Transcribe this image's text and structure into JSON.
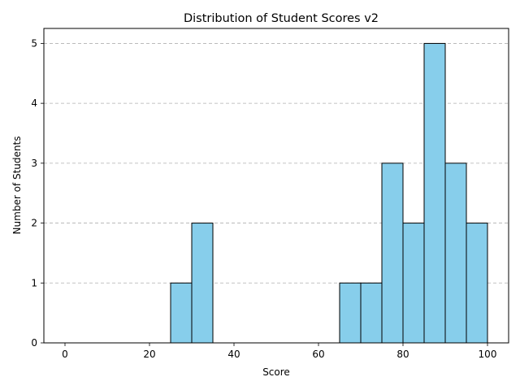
{
  "chart_data": {
    "type": "bar",
    "title": "Distribution of Student Scores v2",
    "xlabel": "Score",
    "ylabel": "Number of Students",
    "xlim": [
      -5,
      105
    ],
    "ylim": [
      0,
      5.25
    ],
    "x_ticks": [
      0,
      20,
      40,
      60,
      80,
      100
    ],
    "y_ticks": [
      0,
      1,
      2,
      3,
      4,
      5
    ],
    "grid": "y-axis dashed",
    "bin_width": 5,
    "bins": [
      {
        "start": 0,
        "end": 5,
        "count": 0
      },
      {
        "start": 5,
        "end": 10,
        "count": 0
      },
      {
        "start": 10,
        "end": 15,
        "count": 0
      },
      {
        "start": 15,
        "end": 20,
        "count": 0
      },
      {
        "start": 20,
        "end": 25,
        "count": 0
      },
      {
        "start": 25,
        "end": 30,
        "count": 1
      },
      {
        "start": 30,
        "end": 35,
        "count": 2
      },
      {
        "start": 35,
        "end": 40,
        "count": 0
      },
      {
        "start": 40,
        "end": 45,
        "count": 0
      },
      {
        "start": 45,
        "end": 50,
        "count": 0
      },
      {
        "start": 50,
        "end": 55,
        "count": 0
      },
      {
        "start": 55,
        "end": 60,
        "count": 0
      },
      {
        "start": 60,
        "end": 65,
        "count": 0
      },
      {
        "start": 65,
        "end": 70,
        "count": 1
      },
      {
        "start": 70,
        "end": 75,
        "count": 1
      },
      {
        "start": 75,
        "end": 80,
        "count": 3
      },
      {
        "start": 80,
        "end": 85,
        "count": 2
      },
      {
        "start": 85,
        "end": 90,
        "count": 5
      },
      {
        "start": 90,
        "end": 95,
        "count": 3
      },
      {
        "start": 95,
        "end": 100,
        "count": 2
      }
    ],
    "colors": {
      "bar_fill": "#87ceeb",
      "bar_edge": "#000000",
      "grid": "#b0b0b0"
    }
  }
}
